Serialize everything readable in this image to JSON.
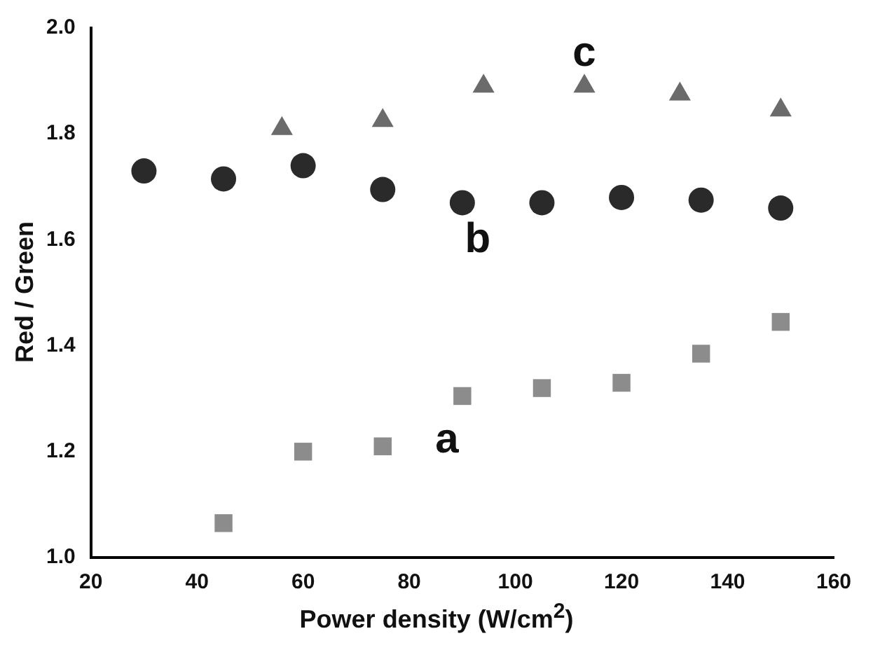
{
  "chart_data": {
    "type": "scatter",
    "xlabel": "Power density (W/cm$^{2}$)",
    "ylabel": "Red / Green",
    "xlim": [
      20,
      160
    ],
    "xticks": [
      20,
      40,
      60,
      80,
      100,
      120,
      140,
      160
    ],
    "ylim": [
      1.0,
      2.0
    ],
    "yticks": [
      {
        "value": 1.0,
        "label": "1.0"
      },
      1.2,
      1.4,
      1.6,
      1.8,
      {
        "value": 2.0,
        "label": "2.0"
      }
    ],
    "grid": false,
    "legend": false,
    "series": [
      {
        "name": "a",
        "color": "#8c8c8c",
        "marker": "square",
        "x": [
          45,
          60,
          75,
          90,
          105,
          120,
          135,
          150
        ],
        "values": [
          1.065,
          1.2,
          1.21,
          1.305,
          1.32,
          1.33,
          1.385,
          1.445
        ]
      },
      {
        "name": "b",
        "color": "#2a2a2a",
        "marker": "circle",
        "x": [
          30,
          45,
          60,
          75,
          90,
          105,
          120,
          135,
          150
        ],
        "values": [
          1.73,
          1.715,
          1.74,
          1.695,
          1.67,
          1.67,
          1.68,
          1.675,
          1.66
        ]
      },
      {
        "name": "c",
        "color": "#6b6b6b",
        "marker": "triangle",
        "x": [
          56,
          75,
          94,
          113,
          131,
          150
        ],
        "values": [
          1.81,
          1.825,
          1.89,
          1.89,
          1.875,
          1.845
        ]
      }
    ]
  }
}
